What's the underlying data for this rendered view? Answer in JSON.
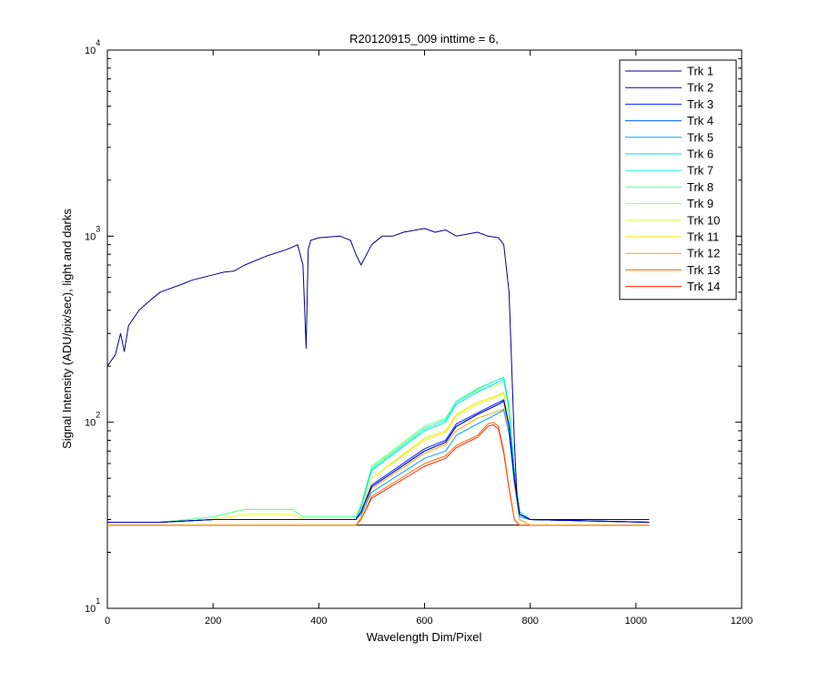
{
  "chart_data": {
    "type": "line",
    "title": "R20120915_009 inttime = 6,",
    "xlabel": "Wavelength Dim/Pixel",
    "ylabel": "Signal Intensity (ADU/pix/sec), light and darks",
    "xlim": [
      0,
      1200
    ],
    "ylim": [
      10,
      10000
    ],
    "yscale": "log",
    "x_ticks": [
      {
        "value": 0,
        "label": "0"
      },
      {
        "value": 200,
        "label": "200"
      },
      {
        "value": 400,
        "label": "400"
      },
      {
        "value": 600,
        "label": "600"
      },
      {
        "value": 800,
        "label": "800"
      },
      {
        "value": 1000,
        "label": "1000"
      },
      {
        "value": 1200,
        "label": "1200"
      }
    ],
    "y_ticks": [
      {
        "value": 10,
        "base": "10",
        "exp": "1"
      },
      {
        "value": 100,
        "base": "10",
        "exp": "2"
      },
      {
        "value": 1000,
        "base": "10",
        "exp": "3"
      },
      {
        "value": 10000,
        "base": "10",
        "exp": "4"
      }
    ],
    "grid": false,
    "legend_position": "top-right",
    "series": [
      {
        "name": "Trk 1",
        "color": "#00008f",
        "x": [
          0,
          5,
          15,
          25,
          32,
          40,
          60,
          80,
          100,
          140,
          160,
          200,
          220,
          240,
          260,
          300,
          340,
          360,
          370,
          376,
          380,
          385,
          400,
          440,
          460,
          470,
          480,
          500,
          520,
          540,
          560,
          600,
          620,
          640,
          660,
          700,
          720,
          740,
          750,
          760,
          765,
          770,
          775,
          780,
          800,
          850,
          900,
          1000,
          1025
        ],
        "y": [
          200,
          210,
          230,
          300,
          240,
          330,
          400,
          450,
          500,
          550,
          580,
          620,
          640,
          650,
          700,
          780,
          850,
          900,
          700,
          250,
          850,
          950,
          980,
          1000,
          950,
          800,
          700,
          900,
          1000,
          1000,
          1050,
          1100,
          1050,
          1080,
          1000,
          1050,
          1000,
          980,
          900,
          500,
          200,
          80,
          40,
          32,
          30,
          30,
          30,
          30,
          30
        ]
      },
      {
        "name": "Trk 2",
        "color": "#0000b0",
        "x": [
          0,
          100,
          200,
          400,
          470,
          480,
          500,
          600,
          640,
          660,
          700,
          740,
          750,
          760,
          770,
          780,
          800,
          1025
        ],
        "y": [
          29,
          29,
          30,
          30,
          30,
          33,
          45,
          70,
          78,
          95,
          110,
          125,
          130,
          95,
          50,
          32,
          30,
          29
        ]
      },
      {
        "name": "Trk 3",
        "color": "#0020ff",
        "x": [
          0,
          100,
          200,
          400,
          470,
          480,
          500,
          600,
          640,
          660,
          700,
          740,
          750,
          760,
          770,
          780,
          800,
          1025
        ],
        "y": [
          29,
          29,
          30,
          30,
          30,
          33,
          46,
          72,
          80,
          98,
          112,
          128,
          132,
          96,
          50,
          32,
          30,
          29
        ]
      },
      {
        "name": "Trk 4",
        "color": "#0060ff",
        "x": [
          0,
          100,
          200,
          400,
          470,
          480,
          500,
          600,
          640,
          660,
          700,
          740,
          750,
          760,
          770,
          780,
          800,
          1025
        ],
        "y": [
          29,
          29,
          30,
          30,
          30,
          33,
          45,
          70,
          78,
          95,
          110,
          125,
          130,
          95,
          50,
          32,
          30,
          29
        ]
      },
      {
        "name": "Trk 5",
        "color": "#00a0ff",
        "x": [
          0,
          100,
          200,
          400,
          470,
          480,
          500,
          600,
          640,
          660,
          700,
          740,
          750,
          760,
          770,
          780,
          800,
          1025
        ],
        "y": [
          29,
          29,
          30,
          30,
          30,
          32,
          42,
          64,
          70,
          85,
          98,
          112,
          116,
          86,
          48,
          31,
          30,
          29
        ]
      },
      {
        "name": "Trk 6",
        "color": "#00e0ff",
        "x": [
          0,
          100,
          200,
          400,
          470,
          480,
          500,
          600,
          640,
          660,
          700,
          740,
          750,
          760,
          770,
          780,
          800,
          1025
        ],
        "y": [
          29,
          29,
          30,
          30,
          30,
          35,
          55,
          90,
          100,
          125,
          145,
          165,
          170,
          120,
          55,
          33,
          30,
          29
        ]
      },
      {
        "name": "Trk 7",
        "color": "#20ffdf",
        "x": [
          0,
          100,
          200,
          400,
          470,
          480,
          500,
          600,
          640,
          660,
          700,
          740,
          750,
          760,
          770,
          780,
          800,
          1025
        ],
        "y": [
          29,
          29,
          30,
          30,
          30,
          35,
          56,
          92,
          103,
          128,
          150,
          170,
          175,
          122,
          55,
          33,
          30,
          29
        ]
      },
      {
        "name": "Trk 8",
        "color": "#60ff9f",
        "x": [
          0,
          100,
          200,
          260,
          350,
          370,
          400,
          470,
          480,
          500,
          600,
          640,
          660,
          700,
          740,
          750,
          760,
          770,
          780,
          800,
          1025
        ],
        "y": [
          29,
          29,
          31,
          34,
          34,
          31,
          31,
          31,
          36,
          58,
          95,
          105,
          130,
          152,
          170,
          172,
          120,
          55,
          33,
          30,
          29
        ]
      },
      {
        "name": "Trk 9",
        "color": "#a0ff60",
        "x": [
          0,
          100,
          200,
          260,
          350,
          370,
          400,
          470,
          480,
          500,
          600,
          640,
          660,
          700,
          740,
          750,
          760,
          770,
          780,
          800,
          1025
        ],
        "y": [
          29,
          29,
          31,
          34,
          34,
          31,
          31,
          31,
          36,
          57,
          93,
          102,
          128,
          148,
          160,
          165,
          115,
          55,
          33,
          30,
          29
        ]
      },
      {
        "name": "Trk 10",
        "color": "#dfff20",
        "x": [
          0,
          100,
          200,
          260,
          350,
          370,
          400,
          470,
          480,
          500,
          600,
          640,
          660,
          700,
          740,
          750,
          760,
          770,
          780,
          800,
          1025
        ],
        "y": [
          29,
          29,
          30,
          32,
          32,
          30,
          30,
          30,
          34,
          50,
          80,
          88,
          108,
          125,
          138,
          142,
          100,
          50,
          32,
          30,
          29
        ]
      },
      {
        "name": "Trk 11",
        "color": "#ffe000",
        "x": [
          0,
          100,
          200,
          400,
          470,
          480,
          500,
          600,
          640,
          660,
          700,
          740,
          750,
          760,
          770,
          780,
          800,
          1025
        ],
        "y": [
          29,
          29,
          30,
          30,
          30,
          34,
          50,
          82,
          90,
          110,
          128,
          140,
          145,
          102,
          50,
          32,
          30,
          29
        ]
      },
      {
        "name": "Trk 12",
        "color": "#ff9f00",
        "x": [
          0,
          100,
          200,
          400,
          470,
          480,
          500,
          600,
          640,
          660,
          700,
          740,
          750,
          760,
          770,
          780,
          800,
          1025
        ],
        "y": [
          28,
          28,
          28,
          28,
          28,
          31,
          44,
          68,
          76,
          90,
          105,
          115,
          118,
          88,
          46,
          30,
          28,
          28
        ]
      },
      {
        "name": "Trk 13",
        "color": "#ff6000",
        "x": [
          0,
          100,
          200,
          400,
          470,
          480,
          500,
          600,
          640,
          660,
          700,
          720,
          730,
          740,
          750,
          760,
          770,
          780,
          800,
          1025
        ],
        "y": [
          28,
          28,
          28,
          28,
          28,
          30,
          40,
          60,
          66,
          75,
          85,
          98,
          100,
          95,
          70,
          45,
          30,
          28,
          28,
          28
        ]
      },
      {
        "name": "Trk 14",
        "color": "#ff2000",
        "x": [
          0,
          100,
          200,
          400,
          470,
          480,
          500,
          600,
          640,
          660,
          700,
          720,
          730,
          740,
          750,
          760,
          770,
          780,
          800,
          1025
        ],
        "y": [
          28,
          28,
          28,
          28,
          28,
          30,
          39,
          58,
          64,
          73,
          83,
          95,
          97,
          92,
          68,
          44,
          30,
          28,
          28,
          28
        ]
      }
    ],
    "dark_series": [
      {
        "color": "#000000",
        "x": [
          0,
          1025
        ],
        "y": [
          28,
          28
        ]
      }
    ]
  }
}
